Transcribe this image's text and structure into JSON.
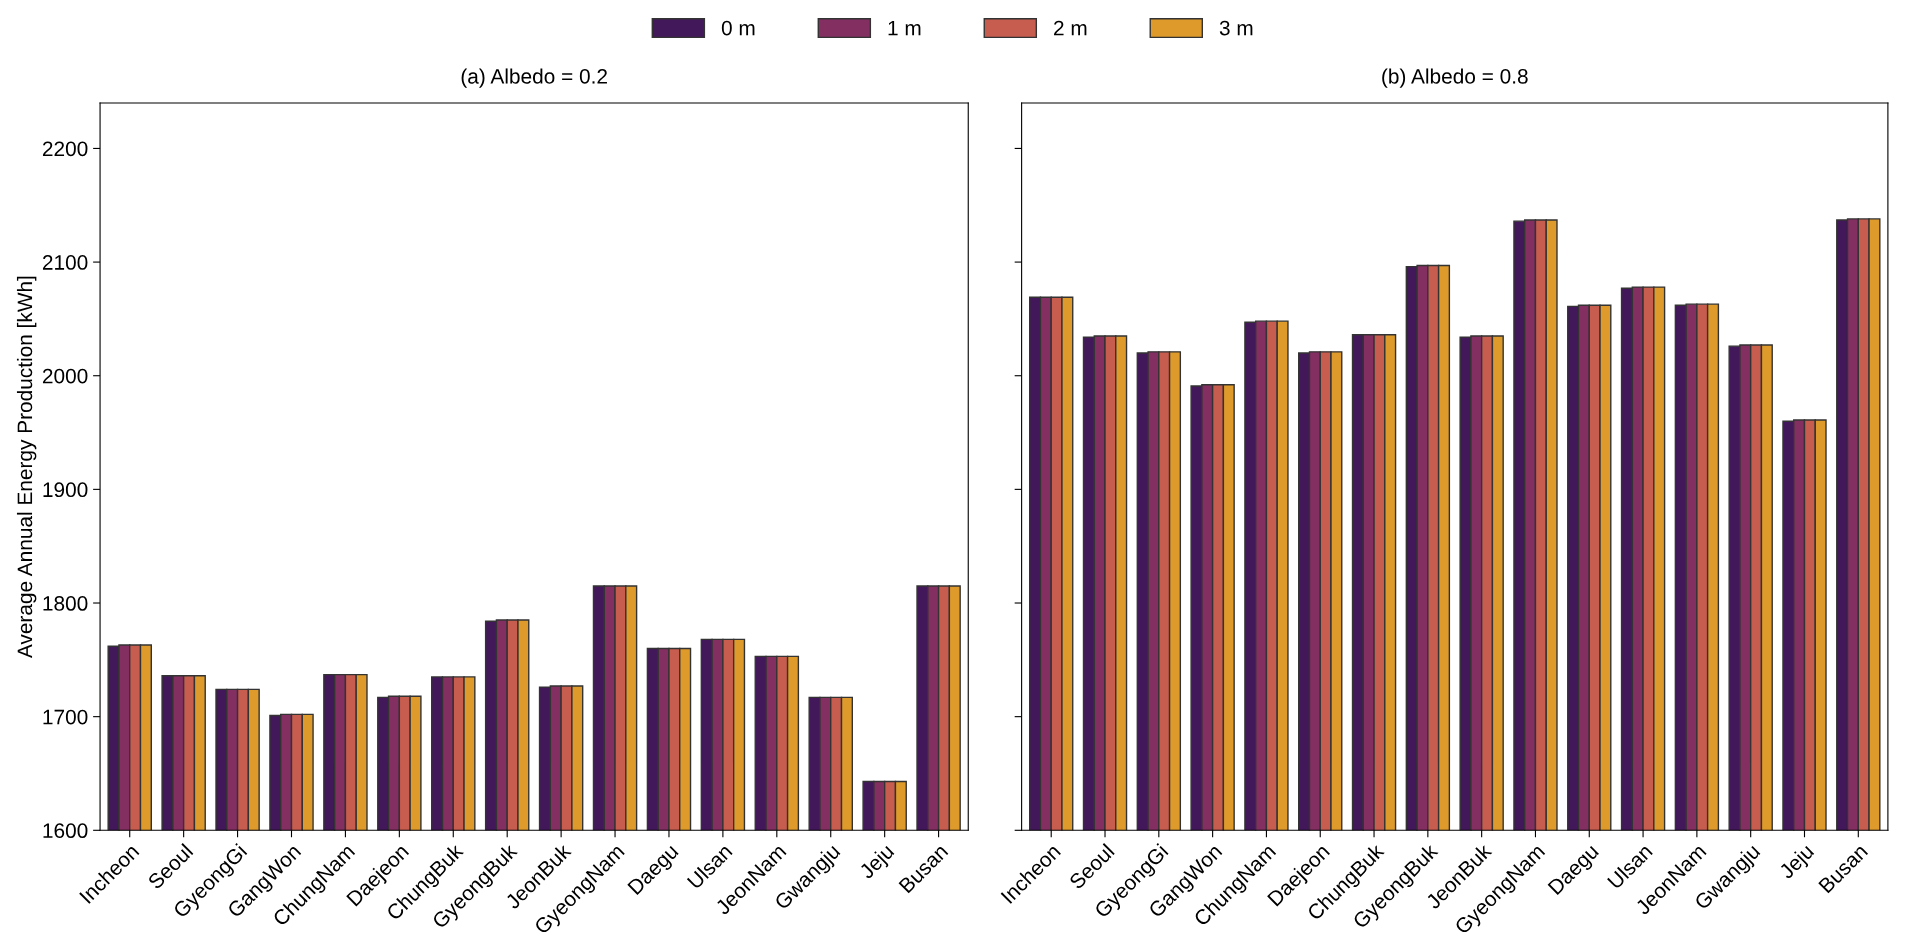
{
  "chart_data": [
    {
      "type": "bar",
      "title": "(a) Albedo = 0.2",
      "ylabel": "Average Annual Energy Production [kWh]",
      "categories": [
        "Incheon",
        "Seoul",
        "GyeongGi",
        "GangWon",
        "ChungNam",
        "Daejeon",
        "ChungBuk",
        "GyeongBuk",
        "JeonBuk",
        "GyeongNam",
        "Daegu",
        "Ulsan",
        "JeonNam",
        "Gwangju",
        "Jeju",
        "Busan"
      ],
      "series": [
        {
          "name": "0 m",
          "color": "#42185a",
          "values": [
            1762,
            1736,
            1724,
            1701,
            1737,
            1717,
            1735,
            1784,
            1726,
            1815,
            1760,
            1768,
            1753,
            1717,
            1643,
            1815
          ]
        },
        {
          "name": "1 m",
          "color": "#832f62",
          "values": [
            1763,
            1736,
            1724,
            1702,
            1737,
            1718,
            1735,
            1785,
            1727,
            1815,
            1760,
            1768,
            1753,
            1717,
            1643,
            1815
          ]
        },
        {
          "name": "2 m",
          "color": "#c75d4f",
          "values": [
            1763,
            1736,
            1724,
            1702,
            1737,
            1718,
            1735,
            1785,
            1727,
            1815,
            1760,
            1768,
            1753,
            1717,
            1643,
            1815
          ]
        },
        {
          "name": "3 m",
          "color": "#de9b2b",
          "values": [
            1763,
            1736,
            1724,
            1702,
            1737,
            1718,
            1735,
            1785,
            1727,
            1815,
            1760,
            1768,
            1753,
            1717,
            1643,
            1815
          ]
        }
      ],
      "ylim": [
        1600,
        2240
      ],
      "yticks": [
        1600,
        1700,
        1800,
        1900,
        2000,
        2100,
        2200
      ],
      "legend": "top",
      "grid": false
    },
    {
      "type": "bar",
      "title": "(b) Albedo = 0.8",
      "categories": [
        "Incheon",
        "Seoul",
        "GyeongGi",
        "GangWon",
        "ChungNam",
        "Daejeon",
        "ChungBuk",
        "GyeongBuk",
        "JeonBuk",
        "GyeongNam",
        "Daegu",
        "Ulsan",
        "JeonNam",
        "Gwangju",
        "Jeju",
        "Busan"
      ],
      "series": [
        {
          "color": "#42185a",
          "values": [
            2069,
            2034,
            2020,
            1991,
            2047,
            2020,
            2036,
            2096,
            2034,
            2136,
            2061,
            2077,
            2062,
            2026,
            1960,
            2137
          ]
        },
        {
          "color": "#832f62",
          "values": [
            2069,
            2035,
            2021,
            1992,
            2048,
            2021,
            2036,
            2097,
            2035,
            2137,
            2062,
            2078,
            2063,
            2027,
            1961,
            2138
          ]
        },
        {
          "color": "#c75d4f",
          "values": [
            2069,
            2035,
            2021,
            1992,
            2048,
            2021,
            2036,
            2097,
            2035,
            2137,
            2062,
            2078,
            2063,
            2027,
            1961,
            2138
          ]
        },
        {
          "color": "#de9b2b",
          "values": [
            2069,
            2035,
            2021,
            1992,
            2048,
            2021,
            2036,
            2097,
            2035,
            2137,
            2062,
            2078,
            2063,
            2027,
            1961,
            2138
          ]
        }
      ],
      "ylim": [
        1600,
        2240
      ],
      "yticks": [
        1600,
        1700,
        1800,
        1900,
        2000,
        2100,
        2200
      ],
      "tick_labels": "x",
      "grid": false
    }
  ]
}
